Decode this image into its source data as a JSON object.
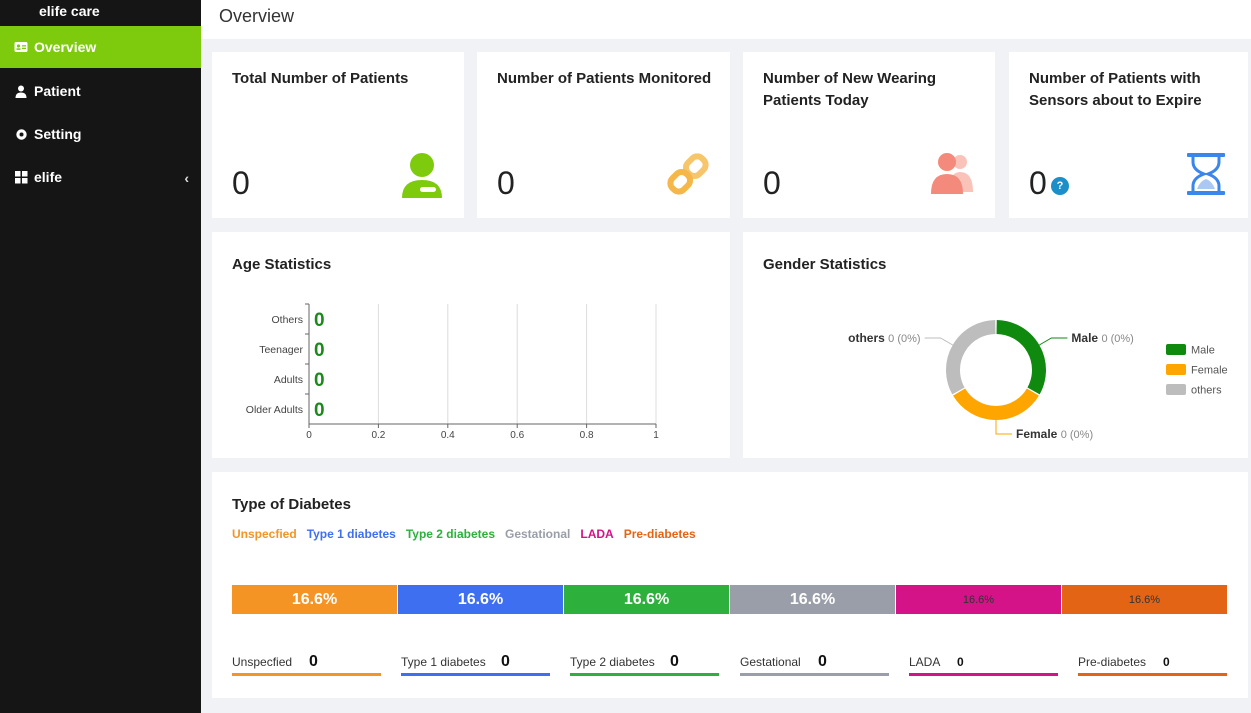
{
  "app": {
    "brand": "elife care"
  },
  "sidebar": {
    "items": [
      {
        "label": "Overview",
        "icon": "id-card-icon"
      },
      {
        "label": "Patient",
        "icon": "user-icon"
      },
      {
        "label": "Setting",
        "icon": "gear-icon"
      },
      {
        "label": "elife",
        "icon": "grid-icon"
      }
    ]
  },
  "header": {
    "title": "Overview"
  },
  "stats": [
    {
      "title_lines": [
        "Total Number of Patients",
        ""
      ],
      "value": "0",
      "icon": "user-icon",
      "color": "#7ecb0d"
    },
    {
      "title_lines": [
        "Number of Patients Monitored",
        ""
      ],
      "value": "0",
      "icon": "link-icon",
      "color": "#f7c56b"
    },
    {
      "title_lines": [
        "Number of New Wearing",
        "Patients Today"
      ],
      "value": "0",
      "icon": "users-icon",
      "color": "#f48a7b"
    },
    {
      "title_lines": [
        "Number of Patients with",
        "Sensors about to Expire"
      ],
      "value": "0",
      "icon": "hourglass-icon",
      "color": "#3a86ea"
    }
  ],
  "age": {
    "title": "Age Statistics",
    "chart_data": {
      "type": "bar",
      "orientation": "horizontal",
      "categories": [
        "Others",
        "Teenager",
        "Adults",
        "Older Adults"
      ],
      "values": [
        0,
        0,
        0,
        0
      ],
      "data_labels": [
        "0",
        "0",
        "0",
        "0"
      ],
      "x_ticks": [
        "0",
        "0.2",
        "0.4",
        "0.6",
        "0.8",
        "1"
      ],
      "xlim": [
        0,
        1
      ],
      "grid": "vertical",
      "label_color": "#1b8a1b"
    }
  },
  "gender": {
    "title": "Gender Statistics",
    "chart_data": {
      "type": "pie",
      "donut": true,
      "series": [
        {
          "name": "Male",
          "value": 0,
          "label": "Male",
          "suffix": "0 (0%)",
          "color": "#0f8a0f"
        },
        {
          "name": "Female",
          "value": 0,
          "label": "Female",
          "suffix": "0 (0%)",
          "color": "#ffa500"
        },
        {
          "name": "others",
          "value": 0,
          "label": "others",
          "suffix": "0 (0%)",
          "color": "#bdbdbd"
        }
      ],
      "legend": "right"
    }
  },
  "diabetes": {
    "title": "Type of Diabetes",
    "types": [
      {
        "name": "Unspecfied",
        "pct": "16.6%",
        "count": "0",
        "color": "#f39425"
      },
      {
        "name": "Type 1 diabetes",
        "pct": "16.6%",
        "count": "0",
        "color": "#3d6ff0"
      },
      {
        "name": "Type 2 diabetes",
        "pct": "16.6%",
        "count": "0",
        "color": "#2db03c"
      },
      {
        "name": "Gestational",
        "pct": "16.6%",
        "count": "0",
        "color": "#9a9ea8"
      },
      {
        "name": "LADA",
        "pct": "16.6%",
        "count": "0",
        "color": "#d31387"
      },
      {
        "name": "Pre-diabetes",
        "pct": "16.6%",
        "count": "0",
        "color": "#e36414"
      }
    ]
  }
}
